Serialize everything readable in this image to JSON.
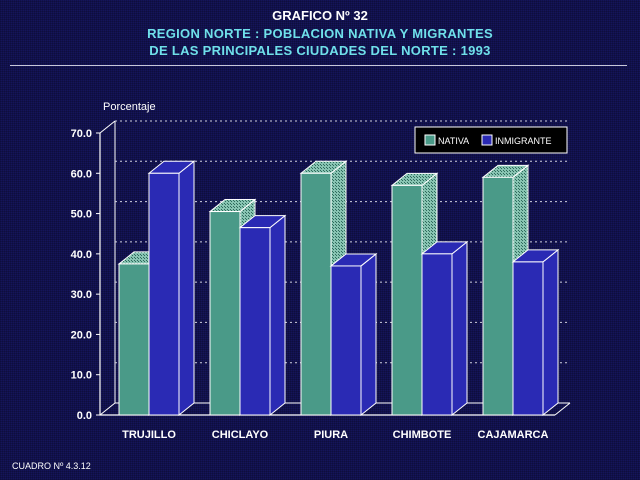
{
  "header": {
    "line1": "GRAFICO Nº 32",
    "line2": "REGION NORTE : POBLACION NATIVA Y MIGRANTES",
    "line3": "DE LAS PRINCIPALES CIUDADES DEL NORTE : 1993"
  },
  "footer": {
    "label": "CUADRO Nº 4.3.12"
  },
  "colors": {
    "nativa_front": "#4a9a88",
    "nativa_top": "#88c4b2",
    "nativa_side": "#1e4a40",
    "inmigrante_front": "#2a2ab4",
    "inmigrante_side": "#181870",
    "text_cyan": "#6fe0ea"
  },
  "chart_data": {
    "type": "bar",
    "ylabel": "Porcentaje",
    "ylim": [
      0,
      70
    ],
    "ytick_labels": [
      "0.0",
      "10.0",
      "20.0",
      "30.0",
      "40.0",
      "50.0",
      "60.0",
      "70.0"
    ],
    "categories": [
      "TRUJILLO",
      "CHICLAYO",
      "PIURA",
      "CHIMBOTE",
      "CAJAMARCA"
    ],
    "series": [
      {
        "name": "NATIVA",
        "values": [
          37.5,
          50.5,
          60.0,
          57.0,
          59.0
        ]
      },
      {
        "name": "INMIGRANTE",
        "values": [
          60.0,
          46.5,
          37.0,
          40.0,
          38.0
        ]
      }
    ],
    "legend": "top-right",
    "grid": true
  }
}
